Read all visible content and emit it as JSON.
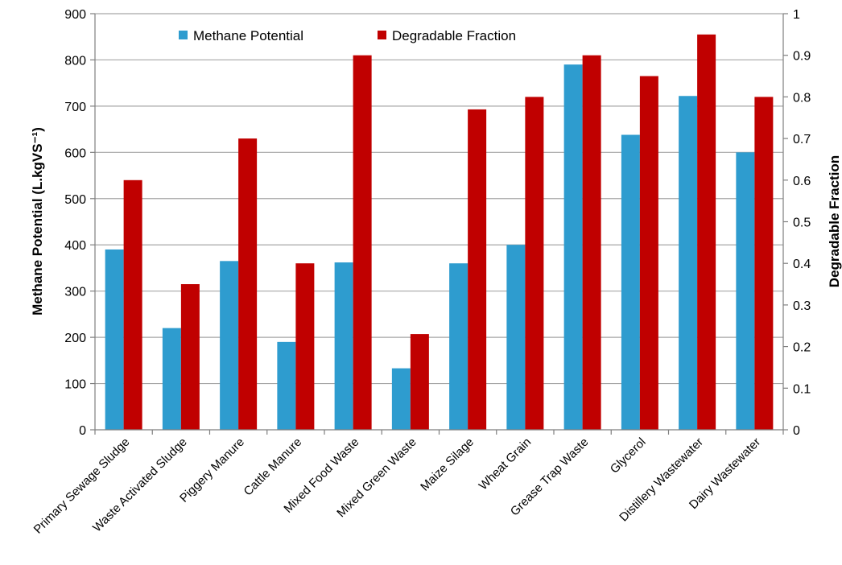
{
  "chart_data": {
    "type": "bar",
    "categories": [
      "Primary Sewage Sludge",
      "Waste Activated Sludge",
      "Piggery Manure",
      "Cattle Manure",
      "Mixed Food Waste",
      "Mixed Green Waste",
      "Maize Silage",
      "Wheat Grain",
      "Grease Trap Waste",
      "Glycerol",
      "Distillery Wastewater",
      "Dairy Wastewater"
    ],
    "series": [
      {
        "name": "Methane Potential",
        "axis": "left",
        "color": "#2e9ccf",
        "values": [
          390,
          220,
          365,
          190,
          362,
          133,
          360,
          400,
          790,
          638,
          722,
          600
        ]
      },
      {
        "name": "Degradable Fraction",
        "axis": "right",
        "color": "#c00000",
        "values": [
          0.6,
          0.35,
          0.7,
          0.4,
          0.9,
          0.23,
          0.77,
          0.8,
          0.9,
          0.85,
          0.95,
          0.8
        ]
      }
    ],
    "ylabel": "Methane Potential (L.kgVS⁻¹)",
    "ylabel_right": "Degradable Fraction",
    "xlabel": "",
    "ylim": [
      0,
      900
    ],
    "y_ticks": [
      0,
      100,
      200,
      300,
      400,
      500,
      600,
      700,
      800,
      900
    ],
    "ylim_right": [
      0,
      1
    ],
    "y_ticks_right": [
      "0",
      "0.1",
      "0.2",
      "0.3",
      "0.4",
      "0.5",
      "0.6",
      "0.7",
      "0.8",
      "0.9",
      "1"
    ],
    "grid": true,
    "legend_position": "top-center"
  }
}
